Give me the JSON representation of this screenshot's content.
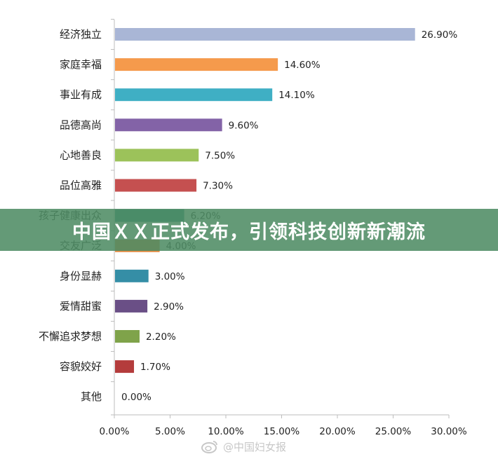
{
  "chart_data": {
    "type": "bar",
    "orientation": "horizontal",
    "categories": [
      "经济独立",
      "家庭幸福",
      "事业有成",
      "品德高尚",
      "心地善良",
      "品位高雅",
      "孩子健康出众",
      "交友广泛",
      "身份显赫",
      "爱情甜蜜",
      "不懈追求梦想",
      "容貌姣好",
      "其他"
    ],
    "values": [
      26.9,
      14.6,
      14.1,
      9.6,
      7.5,
      7.3,
      6.2,
      4.0,
      3.0,
      2.9,
      2.2,
      1.7,
      0.0
    ],
    "value_labels": [
      "26.90%",
      "14.60%",
      "14.10%",
      "9.60%",
      "7.50%",
      "7.30%",
      "6.20%",
      "4.00%",
      "3.00%",
      "2.90%",
      "2.20%",
      "1.70%",
      "0.00%"
    ],
    "bar_colors": [
      "#a9b6d6",
      "#f59a4c",
      "#3fafc4",
      "#8363a7",
      "#9cc25a",
      "#c55050",
      "#2d8c86",
      "#e2873c",
      "#358ea6",
      "#6a4f86",
      "#7fa34a",
      "#b43c3c",
      "#999999"
    ],
    "x_ticks": [
      "0.00%",
      "5.00%",
      "10.00%",
      "15.00%",
      "20.00%",
      "25.00%",
      "30.00%"
    ],
    "xlim": [
      0,
      30
    ],
    "grid": false,
    "legend": "none"
  },
  "banner": {
    "text": "中国ＸＸ正式发布，引领科技创新新潮流"
  },
  "watermark": {
    "text": "@中国妇女报"
  }
}
